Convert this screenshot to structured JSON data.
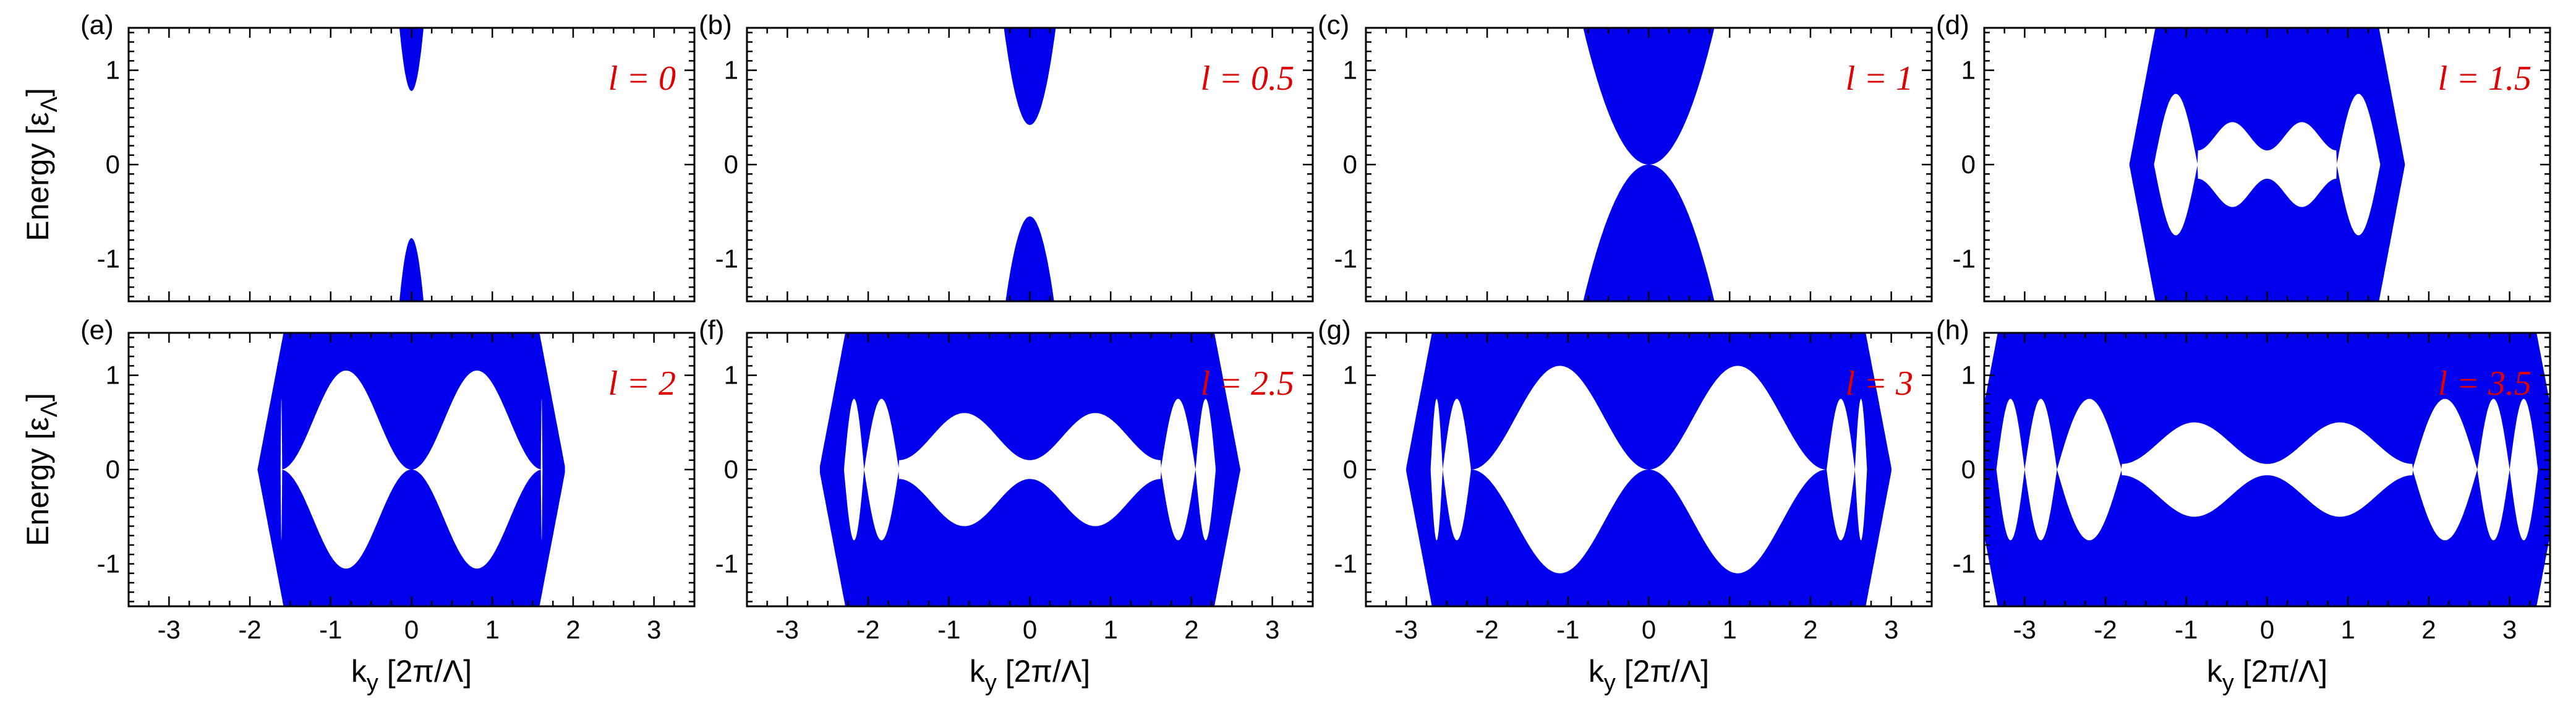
{
  "style": {
    "band_color": "#0000ee",
    "label_color": "#e00000"
  },
  "axes": {
    "xlabel": "k_y [2π/Λ]",
    "xlabel_main": "k",
    "xlabel_sub": "y",
    "xlabel_rest": " [2π/Λ]",
    "ylabel_main": "Energy [ε",
    "ylabel_sub": "Λ",
    "ylabel_rest": "]",
    "xlim": [
      -3.5,
      3.5
    ],
    "ylim": [
      -1.45,
      1.45
    ],
    "xticks": [
      "-3",
      "-2",
      "-1",
      "0",
      "1",
      "2",
      "3"
    ],
    "yticks": [
      "1",
      "0",
      "-1"
    ]
  },
  "chart_data": [
    {
      "type": "area",
      "panel": "(a)",
      "label": "l = 0",
      "l": 0,
      "title": "",
      "xlabel": "",
      "ylabel": "Energy [ε_Λ]"
    },
    {
      "type": "area",
      "panel": "(b)",
      "label": "l = 0.5",
      "l": 0.5,
      "title": "",
      "xlabel": "",
      "ylabel": ""
    },
    {
      "type": "area",
      "panel": "(c)",
      "label": "l = 1",
      "l": 1,
      "title": "",
      "xlabel": "",
      "ylabel": ""
    },
    {
      "type": "area",
      "panel": "(d)",
      "label": "l = 1.5",
      "l": 1.5,
      "title": "",
      "xlabel": "",
      "ylabel": ""
    },
    {
      "type": "area",
      "panel": "(e)",
      "label": "l = 2",
      "l": 2,
      "title": "",
      "xlabel": "k_y [2π/Λ]",
      "ylabel": "Energy [ε_Λ]"
    },
    {
      "type": "area",
      "panel": "(f)",
      "label": "l = 2.5",
      "l": 2.5,
      "title": "",
      "xlabel": "k_y [2π/Λ]",
      "ylabel": ""
    },
    {
      "type": "area",
      "panel": "(g)",
      "label": "l = 3",
      "l": 3,
      "title": "",
      "xlabel": "k_y [2π/Λ]",
      "ylabel": ""
    },
    {
      "type": "area",
      "panel": "(h)",
      "label": "l = 3.5",
      "l": 3.5,
      "title": "",
      "xlabel": "k_y [2π/Λ]",
      "ylabel": ""
    }
  ]
}
